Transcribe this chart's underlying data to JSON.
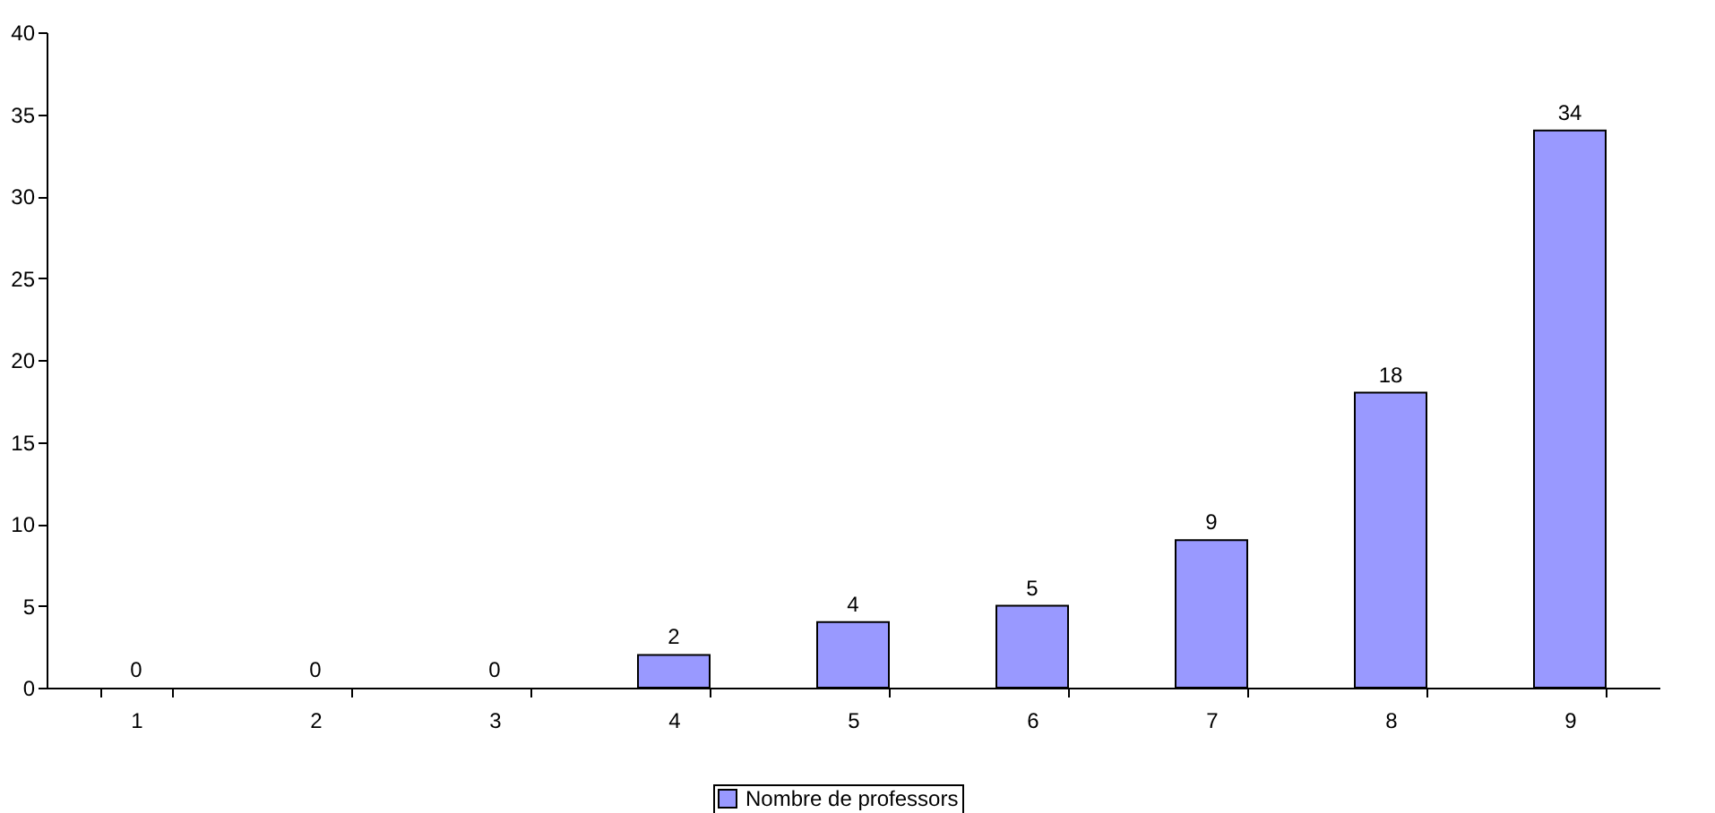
{
  "chart_data": {
    "type": "bar",
    "categories": [
      "1",
      "2",
      "3",
      "4",
      "5",
      "6",
      "7",
      "8",
      "9"
    ],
    "series": [
      {
        "name": "Nombre de professors",
        "color": "#9999ff",
        "values": [
          0,
          0,
          0,
          2,
          4,
          5,
          9,
          18,
          34
        ]
      }
    ],
    "ylim": [
      0,
      40
    ],
    "yticks": [
      0,
      5,
      10,
      15,
      20,
      25,
      30,
      35,
      40
    ],
    "grid": false,
    "legend": "bottom",
    "data_labels": true
  }
}
